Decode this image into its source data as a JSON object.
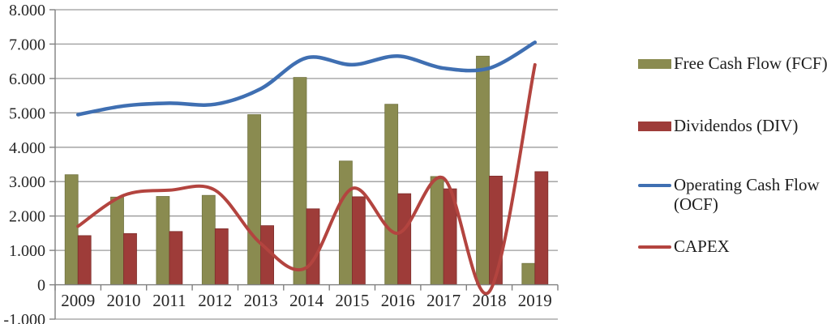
{
  "chart_data": {
    "type": "combo",
    "title": "",
    "xlabel": "",
    "ylabel": "",
    "categories": [
      "2009",
      "2010",
      "2011",
      "2012",
      "2013",
      "2014",
      "2015",
      "2016",
      "2017",
      "2018",
      "2019"
    ],
    "series": [
      {
        "name": "Free Cash Flow (FCF)",
        "type": "bar",
        "color": "#8A8B50",
        "border": "#71733F",
        "values": [
          3200,
          2550,
          2570,
          2600,
          4950,
          6030,
          3600,
          5250,
          3150,
          6650,
          620
        ]
      },
      {
        "name": "Dividendos (DIV)",
        "type": "bar",
        "color": "#9E3C39",
        "border": "#7E2E2C",
        "values": [
          1430,
          1490,
          1550,
          1630,
          1720,
          2210,
          2560,
          2650,
          2790,
          3160,
          3290
        ]
      },
      {
        "name": "Operating Cash Flow (OCF)",
        "type": "line",
        "color": "#3F6FB2",
        "width": 4.5,
        "values": [
          4950,
          5200,
          5280,
          5250,
          5700,
          6600,
          6400,
          6650,
          6300,
          6300,
          7050
        ]
      },
      {
        "name": "CAPEX",
        "type": "line",
        "color": "#B3443F",
        "width": 4,
        "values": [
          1700,
          2600,
          2750,
          2750,
          1200,
          500,
          2800,
          1500,
          3100,
          -200,
          6400
        ]
      }
    ],
    "ylim": [
      -1000,
      8000
    ],
    "y_ticks": [
      {
        "value": 8000,
        "label": "8.000"
      },
      {
        "value": 7000,
        "label": "7.000"
      },
      {
        "value": 6000,
        "label": "6.000"
      },
      {
        "value": 5000,
        "label": "5.000"
      },
      {
        "value": 4000,
        "label": "4.000"
      },
      {
        "value": 3000,
        "label": "3.000"
      },
      {
        "value": 2000,
        "label": "2.000"
      },
      {
        "value": 1000,
        "label": "1.000"
      },
      {
        "value": 0,
        "label": "0"
      },
      {
        "value": -1000,
        "label": "-1.000"
      }
    ],
    "grid": true,
    "legend_position": "right",
    "grid_color": "#9B9B9B",
    "axis_color": "#808080"
  },
  "legend": {
    "items": [
      {
        "label": "Free Cash Flow (FCF)",
        "swatch": "bar",
        "color": "#8A8B50"
      },
      {
        "label": "Dividendos (DIV)",
        "swatch": "bar",
        "color": "#9E3C39"
      },
      {
        "label": "Operating Cash Flow (OCF)",
        "swatch": "line",
        "color": "#3F6FB2"
      },
      {
        "label": "CAPEX",
        "swatch": "line",
        "color": "#B3443F"
      }
    ]
  }
}
